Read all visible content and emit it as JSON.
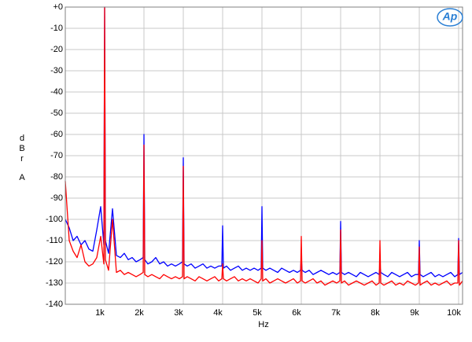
{
  "chart_data": {
    "type": "line",
    "logo": "Ap",
    "ylabel": [
      "dBr",
      "A"
    ],
    "xlabel": "Hz",
    "xlim": [
      0,
      10100
    ],
    "ylim": [
      -140,
      0
    ],
    "grid": true,
    "xticks": [
      {
        "value": 1000,
        "label": "1k"
      },
      {
        "value": 2000,
        "label": "2k"
      },
      {
        "value": 3000,
        "label": "3k"
      },
      {
        "value": 4000,
        "label": "4k"
      },
      {
        "value": 5000,
        "label": "5k"
      },
      {
        "value": 6000,
        "label": "6k"
      },
      {
        "value": 7000,
        "label": "7k"
      },
      {
        "value": 8000,
        "label": "8k"
      },
      {
        "value": 9000,
        "label": "9k"
      },
      {
        "value": 10000,
        "label": "10k"
      }
    ],
    "yticks": [
      {
        "value": 0,
        "label": "+0"
      },
      -10,
      -20,
      -30,
      -40,
      -50,
      -60,
      -70,
      -80,
      -90,
      -100,
      -110,
      -120,
      -130,
      -140
    ],
    "x": [
      0,
      100,
      200,
      300,
      400,
      500,
      600,
      700,
      800,
      900,
      980,
      1000,
      1020,
      1100,
      1200,
      1300,
      1400,
      1500,
      1600,
      1700,
      1800,
      1900,
      1980,
      2000,
      2020,
      2100,
      2200,
      2300,
      2400,
      2500,
      2600,
      2700,
      2800,
      2900,
      2980,
      3000,
      3020,
      3100,
      3200,
      3300,
      3400,
      3500,
      3600,
      3700,
      3800,
      3900,
      3980,
      4000,
      4020,
      4100,
      4200,
      4300,
      4400,
      4500,
      4600,
      4700,
      4800,
      4900,
      4980,
      5000,
      5020,
      5100,
      5200,
      5300,
      5400,
      5500,
      5600,
      5700,
      5800,
      5900,
      5980,
      6000,
      6020,
      6100,
      6200,
      6300,
      6400,
      6500,
      6600,
      6700,
      6800,
      6900,
      6980,
      7000,
      7020,
      7100,
      7200,
      7300,
      7400,
      7500,
      7600,
      7700,
      7800,
      7900,
      7980,
      8000,
      8020,
      8100,
      8200,
      8300,
      8400,
      8500,
      8600,
      8700,
      8800,
      8900,
      8980,
      9000,
      9020,
      9100,
      9200,
      9300,
      9400,
      9500,
      9600,
      9700,
      9800,
      9900,
      9980,
      10000,
      10020,
      10100
    ],
    "series": [
      {
        "color": "#0000ff",
        "values": [
          -100,
          -104,
          -110,
          -108,
          -112,
          -110,
          -114,
          -115,
          -105,
          -94,
          -112,
          0,
          -110,
          -116,
          -95,
          -117,
          -118,
          -116,
          -119,
          -118,
          -120,
          -119,
          -118,
          -60,
          -119,
          -121,
          -120,
          -118,
          -121,
          -120,
          -122,
          -121,
          -122,
          -121,
          -120,
          -71,
          -121,
          -122,
          -121,
          -123,
          -122,
          -121,
          -123,
          -122,
          -123,
          -122,
          -122,
          -103,
          -123,
          -122,
          -124,
          -123,
          -122,
          -124,
          -123,
          -124,
          -123,
          -124,
          -123,
          -94,
          -123,
          -124,
          -123,
          -124,
          -125,
          -123,
          -124,
          -125,
          -124,
          -125,
          -124,
          -118,
          -124,
          -125,
          -124,
          -126,
          -125,
          -124,
          -125,
          -126,
          -125,
          -126,
          -125,
          -101,
          -125,
          -126,
          -125,
          -126,
          -127,
          -125,
          -126,
          -127,
          -126,
          -125,
          -126,
          -122,
          -125,
          -126,
          -127,
          -125,
          -126,
          -127,
          -126,
          -125,
          -127,
          -126,
          -126,
          -110,
          -126,
          -127,
          -126,
          -125,
          -127,
          -126,
          -127,
          -126,
          -125,
          -127,
          -126,
          -109,
          -126,
          -125
        ]
      },
      {
        "color": "#ff0000",
        "values": [
          -82,
          -110,
          -115,
          -118,
          -112,
          -120,
          -122,
          -121,
          -118,
          -108,
          -121,
          0,
          -119,
          -124,
          -100,
          -125,
          -124,
          -126,
          -125,
          -126,
          -127,
          -126,
          -125,
          -65,
          -126,
          -127,
          -126,
          -127,
          -128,
          -126,
          -127,
          -128,
          -127,
          -128,
          -127,
          -75,
          -128,
          -127,
          -128,
          -129,
          -127,
          -128,
          -129,
          -128,
          -127,
          -129,
          -128,
          -121,
          -128,
          -129,
          -128,
          -127,
          -129,
          -128,
          -129,
          -128,
          -129,
          -130,
          -128,
          -110,
          -129,
          -128,
          -130,
          -129,
          -128,
          -129,
          -130,
          -129,
          -128,
          -130,
          -129,
          -108,
          -129,
          -130,
          -129,
          -128,
          -130,
          -129,
          -131,
          -130,
          -129,
          -130,
          -129,
          -105,
          -130,
          -129,
          -131,
          -130,
          -129,
          -130,
          -131,
          -130,
          -129,
          -131,
          -130,
          -110,
          -130,
          -131,
          -130,
          -129,
          -131,
          -130,
          -131,
          -129,
          -130,
          -131,
          -130,
          -113,
          -131,
          -130,
          -129,
          -131,
          -130,
          -131,
          -130,
          -129,
          -131,
          -130,
          -130,
          -110,
          -131,
          -129
        ]
      }
    ]
  }
}
